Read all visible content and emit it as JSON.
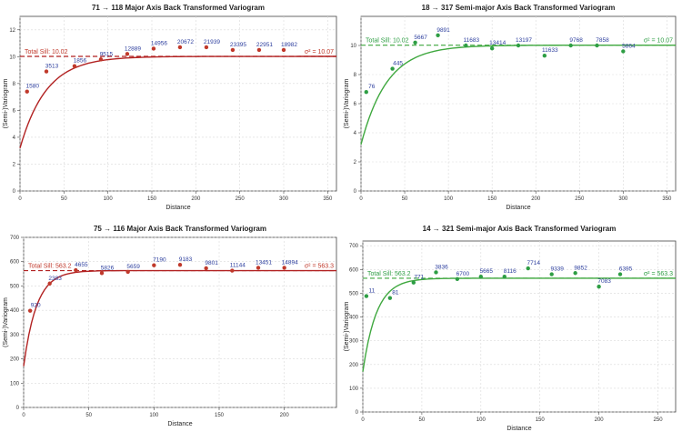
{
  "chart_data": [
    {
      "type": "scatter",
      "title": "71 → 118 Major Axis Back Transformed Variogram",
      "xlabel": "Distance",
      "ylabel": "(Semi-)Variogram",
      "xlim": [
        0,
        360
      ],
      "ylim": [
        0,
        13
      ],
      "xticks": [
        "0",
        "50",
        "100",
        "150",
        "200",
        "250",
        "300",
        "350"
      ],
      "yticks": [
        "0",
        "2",
        "4",
        "6",
        "8",
        "10",
        "12"
      ],
      "grid": true,
      "sill": 10.02,
      "sill_label": "Total Sill: 10.02",
      "sigma_label": "σ² = 10.07",
      "sigma": 10.07,
      "model_nugget": 3.2,
      "model_range": 90,
      "color_model": "#b22222",
      "color_sill": "#b22222",
      "color_points": "#c0392b",
      "color_sill_label": "#c0392b",
      "color_labels": "#2c3e9e",
      "points": [
        {
          "x": 8,
          "y": 7.4,
          "label": "1580"
        },
        {
          "x": 30,
          "y": 8.9,
          "label": "3513"
        },
        {
          "x": 62,
          "y": 9.3,
          "label": "1856"
        },
        {
          "x": 92,
          "y": 9.8,
          "label": "9515"
        },
        {
          "x": 122,
          "y": 10.2,
          "label": "12889"
        },
        {
          "x": 152,
          "y": 10.6,
          "label": "14956"
        },
        {
          "x": 182,
          "y": 10.7,
          "label": "20672"
        },
        {
          "x": 212,
          "y": 10.7,
          "label": "21939"
        },
        {
          "x": 242,
          "y": 10.5,
          "label": "23395"
        },
        {
          "x": 272,
          "y": 10.5,
          "label": "22951"
        },
        {
          "x": 300,
          "y": 10.5,
          "label": "18982"
        }
      ]
    },
    {
      "type": "scatter",
      "title": "18 → 317 Semi-major Axis Back Transformed Variogram",
      "xlabel": "Distance",
      "ylabel": "(Semi-)Variogram",
      "xlim": [
        0,
        360
      ],
      "ylim": [
        0,
        12
      ],
      "xticks": [
        "0",
        "50",
        "100",
        "150",
        "200",
        "250",
        "300",
        "350"
      ],
      "yticks": [
        "0",
        "2",
        "4",
        "6",
        "8",
        "10"
      ],
      "grid": true,
      "sill": 10.02,
      "sill_label": "Total Sill: 10.02",
      "sigma_label": "σ² = 10.07",
      "sigma": 10.07,
      "model_nugget": 3.2,
      "model_range": 90,
      "color_model": "#3fa83f",
      "color_sill": "#3fa83f",
      "color_points": "#2e9e44",
      "color_sill_label": "#2e9e44",
      "color_labels": "#2c3e9e",
      "points": [
        {
          "x": 6,
          "y": 6.8,
          "label": "76"
        },
        {
          "x": 36,
          "y": 8.4,
          "label": "445"
        },
        {
          "x": 62,
          "y": 10.2,
          "label": "5667"
        },
        {
          "x": 88,
          "y": 10.7,
          "label": "9891"
        },
        {
          "x": 120,
          "y": 10.0,
          "label": "11683"
        },
        {
          "x": 150,
          "y": 9.8,
          "label": "13414"
        },
        {
          "x": 180,
          "y": 10.0,
          "label": "13197"
        },
        {
          "x": 210,
          "y": 9.3,
          "label": "11633"
        },
        {
          "x": 240,
          "y": 10.0,
          "label": "9768"
        },
        {
          "x": 270,
          "y": 10.0,
          "label": "7858"
        },
        {
          "x": 300,
          "y": 9.6,
          "label": "5864"
        }
      ]
    },
    {
      "type": "scatter",
      "title": "75 → 116 Major Axis Back Transformed Variogram",
      "xlabel": "Distance",
      "ylabel": "(Semi-)Variogram",
      "xlim": [
        0,
        240
      ],
      "ylim": [
        0,
        700
      ],
      "xticks": [
        "0",
        "50",
        "100",
        "150",
        "200"
      ],
      "yticks": [
        "0",
        "100",
        "200",
        "300",
        "400",
        "500",
        "600",
        "700"
      ],
      "grid": true,
      "sill": 563.2,
      "sill_label": "Total Sill: 563.2",
      "sigma_label": "σ² = 563.3",
      "sigma": 563.3,
      "model_nugget": 170,
      "model_range": 30,
      "color_model": "#b22222",
      "color_sill": "#b22222",
      "color_points": "#c0392b",
      "color_sill_label": "#c0392b",
      "color_labels": "#2c3e9e",
      "points": [
        {
          "x": 5,
          "y": 398,
          "label": "920"
        },
        {
          "x": 20,
          "y": 510,
          "label": "2383"
        },
        {
          "x": 40,
          "y": 565,
          "label": "4655"
        },
        {
          "x": 60,
          "y": 553,
          "label": "5826"
        },
        {
          "x": 80,
          "y": 558,
          "label": "5659"
        },
        {
          "x": 100,
          "y": 585,
          "label": "7190"
        },
        {
          "x": 120,
          "y": 587,
          "label": "9183"
        },
        {
          "x": 140,
          "y": 573,
          "label": "9801"
        },
        {
          "x": 160,
          "y": 563,
          "label": "11144"
        },
        {
          "x": 180,
          "y": 575,
          "label": "13451"
        },
        {
          "x": 200,
          "y": 575,
          "label": "14894"
        }
      ]
    },
    {
      "type": "scatter",
      "title": "14 → 321 Semi-major Axis Back Transformed Variogram",
      "xlabel": "Distance",
      "ylabel": "(Semi-)Variogram",
      "xlim": [
        0,
        265
      ],
      "ylim": [
        0,
        720
      ],
      "xticks": [
        "0",
        "50",
        "100",
        "150",
        "200",
        "250"
      ],
      "yticks": [
        "0",
        "100",
        "200",
        "300",
        "400",
        "500",
        "600",
        "700"
      ],
      "grid": true,
      "sill": 563.2,
      "sill_label": "Total Sill: 563.2",
      "sigma_label": "σ² = 563.3",
      "sigma": 563.3,
      "model_nugget": 170,
      "model_range": 35,
      "color_model": "#3fa83f",
      "color_sill": "#3fa83f",
      "color_points": "#2e9e44",
      "color_sill_label": "#2e9e44",
      "color_labels": "#2c3e9e",
      "points": [
        {
          "x": 3,
          "y": 488,
          "label": "11"
        },
        {
          "x": 23,
          "y": 480,
          "label": "81"
        },
        {
          "x": 43,
          "y": 545,
          "label": "771"
        },
        {
          "x": 62,
          "y": 588,
          "label": "3836"
        },
        {
          "x": 80,
          "y": 560,
          "label": "6700"
        },
        {
          "x": 100,
          "y": 570,
          "label": "5665"
        },
        {
          "x": 120,
          "y": 570,
          "label": "8116"
        },
        {
          "x": 140,
          "y": 605,
          "label": "7714"
        },
        {
          "x": 160,
          "y": 580,
          "label": "9339"
        },
        {
          "x": 180,
          "y": 585,
          "label": "9852"
        },
        {
          "x": 200,
          "y": 528,
          "label": "7083"
        },
        {
          "x": 218,
          "y": 580,
          "label": "6395"
        }
      ]
    }
  ]
}
